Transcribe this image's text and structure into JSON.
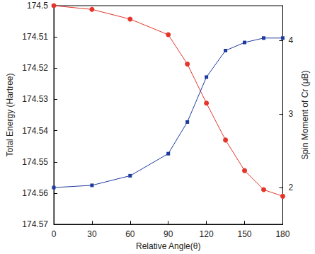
{
  "chart_data": {
    "type": "line",
    "xlabel": "Relative Angle(θ)",
    "ylabel": "Total Energy (Hartree)",
    "y2label": "Spin Moment of Cr (μB)",
    "x": [
      0,
      30,
      60,
      90,
      105,
      120,
      135,
      150,
      165,
      180
    ],
    "xlim": [
      0,
      180
    ],
    "xticks": [
      0,
      30,
      60,
      90,
      120,
      150,
      180
    ],
    "ylim": [
      174.5,
      174.57
    ],
    "yticks": [
      174.5,
      174.51,
      174.52,
      174.53,
      174.54,
      174.55,
      174.56,
      174.57
    ],
    "y2lim": [
      1.5,
      4.47
    ],
    "y2ticks": [
      2,
      3,
      4
    ],
    "grid": false,
    "series": [
      {
        "color": "#e5352b",
        "marker": "circle",
        "line_style": "solid",
        "values": [
          174.5,
          174.5012,
          174.5043,
          174.5093,
          174.5187,
          174.5312,
          174.543,
          174.5528,
          174.5589,
          174.561
        ]
      },
      {
        "color": "#1f3a9e",
        "marker": "square",
        "line_style": "solid",
        "axis": "y2",
        "values": [
          2.0,
          2.03,
          2.16,
          2.46,
          2.89,
          3.5,
          3.86,
          3.97,
          4.03,
          4.03
        ]
      }
    ]
  }
}
